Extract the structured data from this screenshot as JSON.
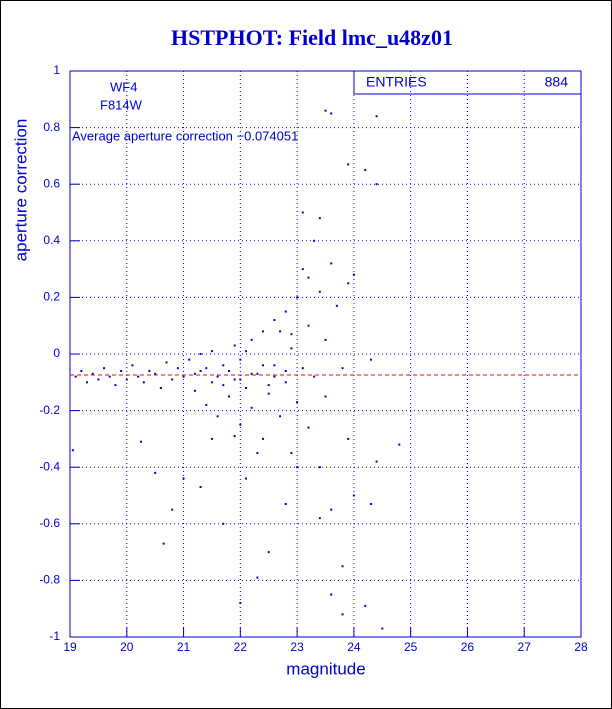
{
  "chart_data": {
    "type": "scatter",
    "title": "HSTPHOT: Field lmc_u48z01",
    "xlabel": "magnitude",
    "ylabel": "aperture correction",
    "annotations": [
      "WF4",
      "F814W",
      "Average aperture correction −0.074051"
    ],
    "average": -0.074051,
    "average_color": "#ff0000",
    "stats": {
      "label": "ENTRIES",
      "value": 884
    },
    "color": "#0000cc",
    "grid": true,
    "xlim": [
      19,
      28
    ],
    "xticks": [
      19,
      20,
      21,
      22,
      23,
      24,
      25,
      26,
      27,
      28
    ],
    "ylim": [
      -1,
      1
    ],
    "yticks": [
      -1,
      -0.8,
      -0.6,
      -0.4,
      -0.2,
      0,
      0.2,
      0.4,
      0.6,
      0.8,
      1
    ],
    "x": [
      19.1,
      19.2,
      19.3,
      19.4,
      19.5,
      19.6,
      19.7,
      19.8,
      19.9,
      20.0,
      20.1,
      20.2,
      20.3,
      20.4,
      20.5,
      20.6,
      20.7,
      20.8,
      20.9,
      21.0,
      19.05,
      20.25,
      20.5,
      20.65,
      20.8,
      21.0,
      21.1,
      21.2,
      21.3,
      21.4,
      21.5,
      21.5,
      21.6,
      21.7,
      21.8,
      21.9,
      21.9,
      22.0,
      22.0,
      22.1,
      22.2,
      22.2,
      22.3,
      22.4,
      22.4,
      22.5,
      22.6,
      22.6,
      22.7,
      22.8,
      22.8,
      22.9,
      22.9,
      23.0,
      23.0,
      23.1,
      23.1,
      23.2,
      23.2,
      23.3,
      23.3,
      23.4,
      23.4,
      23.5,
      23.5,
      23.6,
      23.6,
      23.7,
      23.8,
      23.9,
      23.9,
      21.3,
      21.7,
      22.1,
      22.3,
      22.5,
      22.0,
      22.8,
      23.4,
      23.8,
      24.0,
      24.2,
      24.4,
      24.8,
      24.3,
      24.5,
      23.5,
      23.6,
      24.4,
      24.4,
      24.2,
      23.9,
      23.4,
      23.1,
      24.0,
      24.3,
      23.8,
      23.6,
      21.2,
      21.4,
      21.6,
      21.8,
      22.0,
      22.2,
      22.4,
      22.6,
      22.8,
      21.3,
      21.7,
      22.1,
      22.5,
      22.9,
      23.2,
      22.7,
      21.9,
      22.3,
      21.5,
      23.0
    ],
    "values": [
      -0.08,
      -0.06,
      -0.1,
      -0.07,
      -0.09,
      -0.05,
      -0.08,
      -0.11,
      -0.06,
      -0.09,
      -0.04,
      -0.08,
      -0.1,
      -0.06,
      -0.07,
      -0.12,
      -0.03,
      -0.09,
      -0.05,
      -0.08,
      -0.34,
      -0.31,
      -0.42,
      -0.67,
      -0.55,
      -0.44,
      -0.02,
      -0.13,
      -0.06,
      -0.18,
      0.01,
      -0.1,
      -0.22,
      -0.04,
      -0.15,
      0.03,
      -0.09,
      -0.25,
      -0.02,
      -0.12,
      0.05,
      -0.19,
      -0.07,
      -0.3,
      0.08,
      -0.14,
      0.12,
      -0.04,
      -0.22,
      0.15,
      -0.1,
      -0.35,
      0.02,
      0.2,
      -0.17,
      0.3,
      -0.05,
      0.1,
      -0.26,
      0.4,
      -0.08,
      0.22,
      -0.4,
      0.05,
      -0.15,
      0.32,
      -0.55,
      0.17,
      -0.05,
      0.25,
      -0.3,
      -0.47,
      -0.6,
      -0.44,
      -0.79,
      -0.7,
      -0.88,
      -0.53,
      -0.58,
      -0.75,
      -0.5,
      -0.89,
      -0.38,
      -0.32,
      -0.02,
      -0.97,
      0.86,
      0.85,
      0.84,
      0.6,
      0.65,
      0.67,
      0.48,
      0.5,
      0.28,
      -0.53,
      -0.92,
      -0.85,
      -0.07,
      -0.05,
      -0.08,
      -0.06,
      -0.09,
      -0.07,
      -0.04,
      -0.08,
      -0.06,
      0.0,
      -0.11,
      0.01,
      -0.11,
      0.07,
      0.27,
      0.08,
      -0.29,
      -0.35,
      -0.3,
      -0.4
    ]
  }
}
